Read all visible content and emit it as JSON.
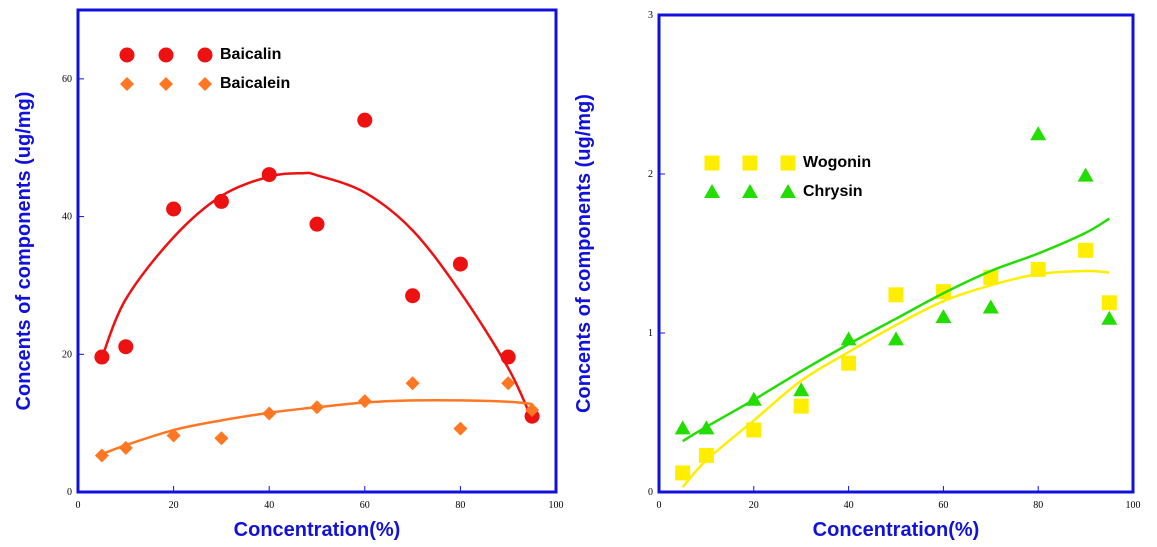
{
  "chart_data": [
    {
      "type": "scatter",
      "xlabel": "Concentration(%)",
      "ylabel": "Concents of components (ug/mg)",
      "xlim": [
        0,
        100
      ],
      "ylim": [
        0,
        70
      ],
      "xticks": [
        0,
        20,
        40,
        60,
        80,
        100
      ],
      "yticks": [
        0,
        20,
        40,
        60
      ],
      "x": [
        5,
        10,
        20,
        30,
        40,
        50,
        60,
        70,
        80,
        90,
        95
      ],
      "fit_x": [
        5,
        10,
        20,
        30,
        40,
        47,
        50,
        60,
        70,
        80,
        90,
        95
      ],
      "series": [
        {
          "name": "Baicalin",
          "color": "#ee1111",
          "marker": "circle",
          "values": [
            19.6,
            21.1,
            41.1,
            42.2,
            46.1,
            38.9,
            54.0,
            28.5,
            33.1,
            19.6,
            11.0
          ],
          "fit": [
            19.5,
            28,
            37,
            43,
            45.8,
            46.3,
            46,
            43.5,
            38,
            29,
            18,
            10.5
          ]
        },
        {
          "name": "Baicalein",
          "color": "#ff7722",
          "marker": "diamond",
          "values": [
            5.3,
            6.4,
            8.2,
            7.8,
            11.4,
            12.3,
            13.2,
            15.8,
            9.2,
            15.8,
            11.9
          ],
          "fit": [
            5.5,
            6.8,
            9,
            10.4,
            11.5,
            12.1,
            12.3,
            13,
            13.3,
            13.3,
            13.1,
            12.8
          ]
        }
      ]
    },
    {
      "type": "scatter",
      "xlabel": "Concentration(%)",
      "ylabel": "Concents of components (ug/mg)",
      "xlim": [
        0,
        100
      ],
      "ylim": [
        0,
        3
      ],
      "xticks": [
        0,
        20,
        40,
        60,
        80,
        100
      ],
      "yticks": [
        0,
        1,
        2,
        3
      ],
      "x": [
        5,
        10,
        20,
        30,
        40,
        50,
        60,
        70,
        80,
        90,
        95
      ],
      "fit_x": [
        5,
        10,
        20,
        30,
        40,
        50,
        60,
        70,
        80,
        90,
        95
      ],
      "series": [
        {
          "name": "Wogonin",
          "color": "#ffee00",
          "marker": "square",
          "values": [
            0.12,
            0.23,
            0.39,
            0.54,
            0.81,
            1.24,
            1.26,
            1.35,
            1.4,
            1.52,
            1.19
          ],
          "fit": [
            0.03,
            0.2,
            0.45,
            0.7,
            0.88,
            1.05,
            1.2,
            1.3,
            1.37,
            1.39,
            1.38
          ]
        },
        {
          "name": "Chrysin",
          "color": "#22dd00",
          "marker": "triangle",
          "values": [
            0.4,
            0.4,
            0.58,
            0.64,
            0.96,
            0.96,
            1.1,
            1.16,
            2.25,
            1.99,
            1.09
          ],
          "fit": [
            0.32,
            0.41,
            0.58,
            0.76,
            0.93,
            1.09,
            1.25,
            1.39,
            1.5,
            1.63,
            1.72
          ]
        }
      ]
    }
  ]
}
